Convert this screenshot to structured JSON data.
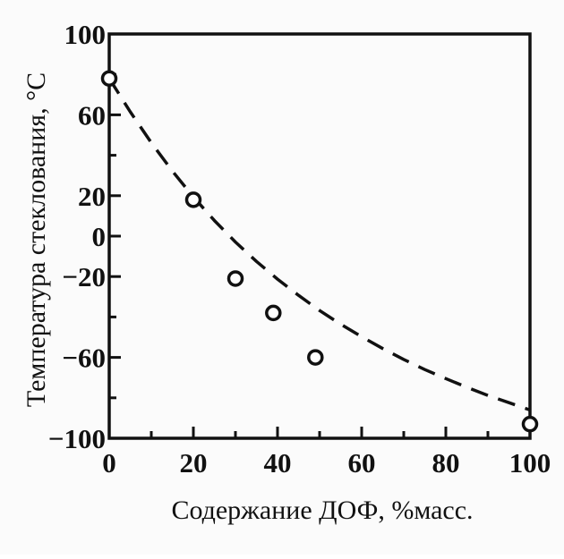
{
  "chart_data": {
    "type": "scatter",
    "title": "",
    "xlabel": "Содержание ДОФ, %масс.",
    "ylabel": "Температура стеклования, °C",
    "xlim": [
      0,
      100
    ],
    "ylim": [
      -100,
      100
    ],
    "x_ticks": [
      {
        "value": 0,
        "label": "0"
      },
      {
        "value": 20,
        "label": "20"
      },
      {
        "value": 40,
        "label": "40"
      },
      {
        "value": 60,
        "label": "60"
      },
      {
        "value": 80,
        "label": "80"
      },
      {
        "value": 100,
        "label": "100"
      }
    ],
    "x_minor_ticks": [
      10,
      30,
      50,
      70,
      90
    ],
    "y_ticks": [
      {
        "value": 100,
        "label": "100"
      },
      {
        "value": 60,
        "label": "60"
      },
      {
        "value": 20,
        "label": "20"
      },
      {
        "value": 0,
        "label": "0"
      },
      {
        "value": -20,
        "label": "−20"
      },
      {
        "value": -60,
        "label": "−60"
      },
      {
        "value": -100,
        "label": "−100"
      }
    ],
    "y_minor_ticks": [
      80,
      40,
      -40,
      -80
    ],
    "grid": false,
    "series": [
      {
        "kind": "points",
        "marker": "open-circle",
        "x": [
          0,
          20,
          30,
          39,
          49,
          100
        ],
        "y": [
          78,
          18,
          -21,
          -38,
          -60,
          -93
        ]
      },
      {
        "kind": "fit-curve",
        "line_style": "dashed",
        "x": [
          0,
          5,
          10,
          15,
          20,
          25,
          30,
          35,
          40,
          45,
          50,
          55,
          60,
          65,
          70,
          75,
          80,
          85,
          90,
          95,
          100
        ],
        "y": [
          78,
          61.5,
          46.2,
          32.2,
          19.4,
          7.7,
          -2.9,
          -12.5,
          -21.3,
          -29.3,
          -36.8,
          -43.6,
          -49.8,
          -55.6,
          -61,
          -66,
          -70.5,
          -74.8,
          -78.8,
          -82.4,
          -86
        ]
      }
    ],
    "colors": {
      "ink": "#111111",
      "background": "#fbfbfb",
      "marker_fill": "#ffffff"
    }
  }
}
